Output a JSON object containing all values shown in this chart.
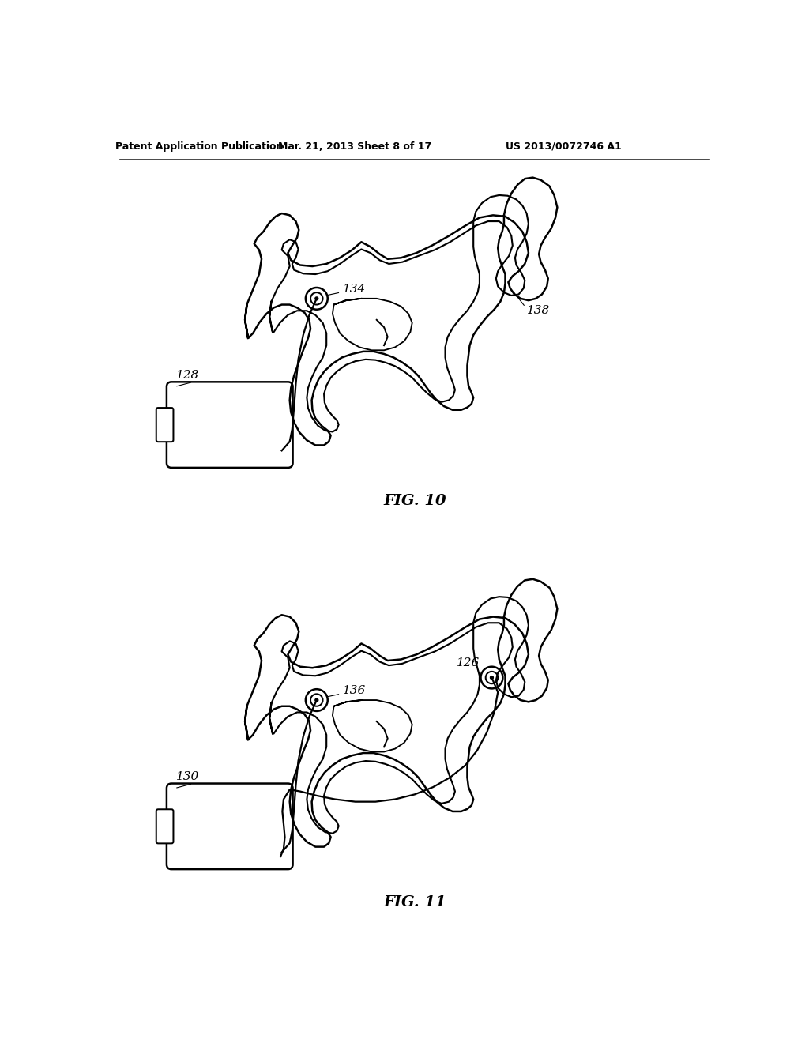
{
  "background_color": "#ffffff",
  "header_text": "Patent Application Publication",
  "header_date": "Mar. 21, 2013 Sheet 8 of 17",
  "header_patent": "US 2013/0072746 A1",
  "fig10_label": "FIG. 10",
  "fig11_label": "FIG. 11",
  "label_128": "128",
  "label_134": "134",
  "label_138": "138",
  "label_130": "130",
  "label_136": "136",
  "label_126": "126",
  "line_color": "#000000",
  "line_width": 1.8,
  "fig_label_fontsize": 14,
  "header_fontsize": 9,
  "annotation_fontsize": 11
}
